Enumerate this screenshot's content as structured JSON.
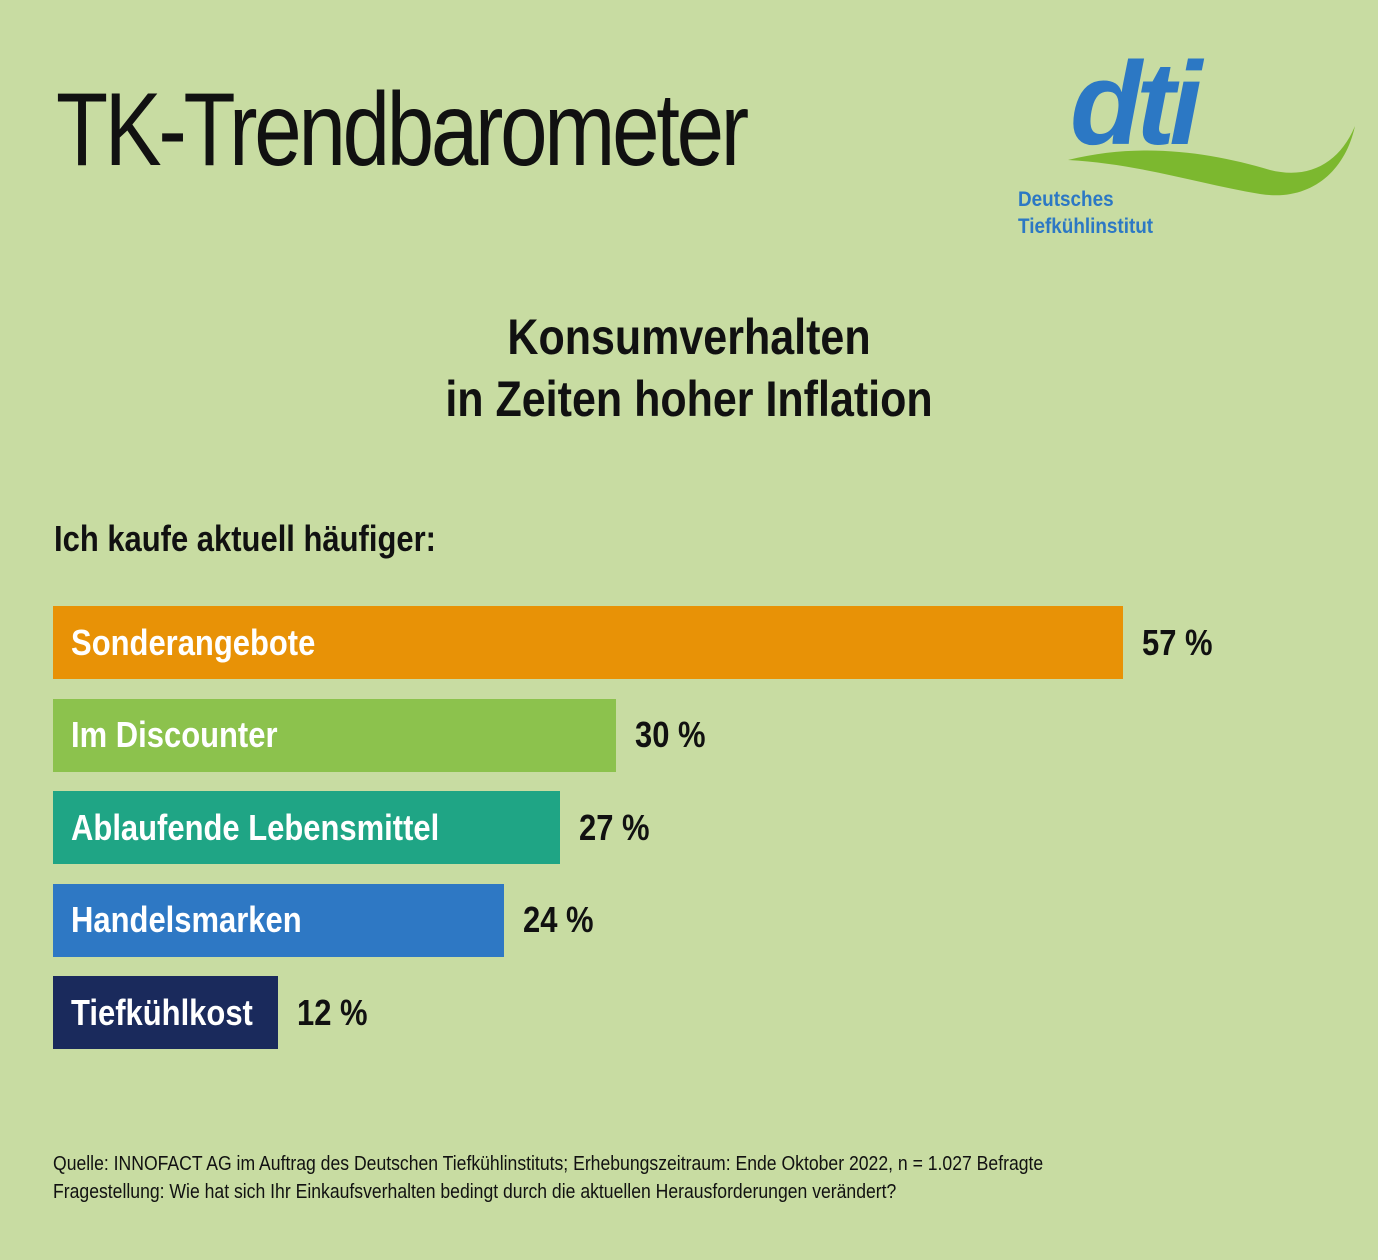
{
  "header": {
    "title": "TK-Trendbarometer"
  },
  "logo": {
    "wordmark": "dti",
    "line1": "Deutsches",
    "line2": "Tiefkühlinstitut",
    "colors": {
      "blue": "#2c78c4",
      "green": "#7cb82f"
    }
  },
  "chart_data": {
    "type": "bar",
    "orientation": "horizontal",
    "title_line1": "Konsumverhalten",
    "title_line2": "in Zeiten hoher Inflation",
    "subtitle": "Ich kaufe aktuell häufiger:",
    "categories": [
      "Sonderangebote",
      "Im Discounter",
      "Ablaufende Lebensmittel",
      "Handelsmarken",
      "Tiefkühlkost"
    ],
    "values": [
      57,
      30,
      27,
      24,
      12
    ],
    "value_labels": [
      "57 %",
      "30 %",
      "27 %",
      "24 %",
      "12 %"
    ],
    "unit": "%",
    "colors": [
      "#e89206",
      "#8cc24d",
      "#1fa585",
      "#2e78c4",
      "#1a2a5c"
    ],
    "xlim": [
      0,
      57
    ],
    "grid": false
  },
  "footnote": {
    "source": "Quelle: INNOFACT AG im Auftrag des Deutschen Tiefkühlinstituts; Erhebungszeitraum: Ende Oktober 2022, n = 1.027 Befragte",
    "question": "Fragestellung: Wie hat sich Ihr Einkaufsverhalten bedingt durch die aktuellen Herausforderungen verändert?"
  }
}
